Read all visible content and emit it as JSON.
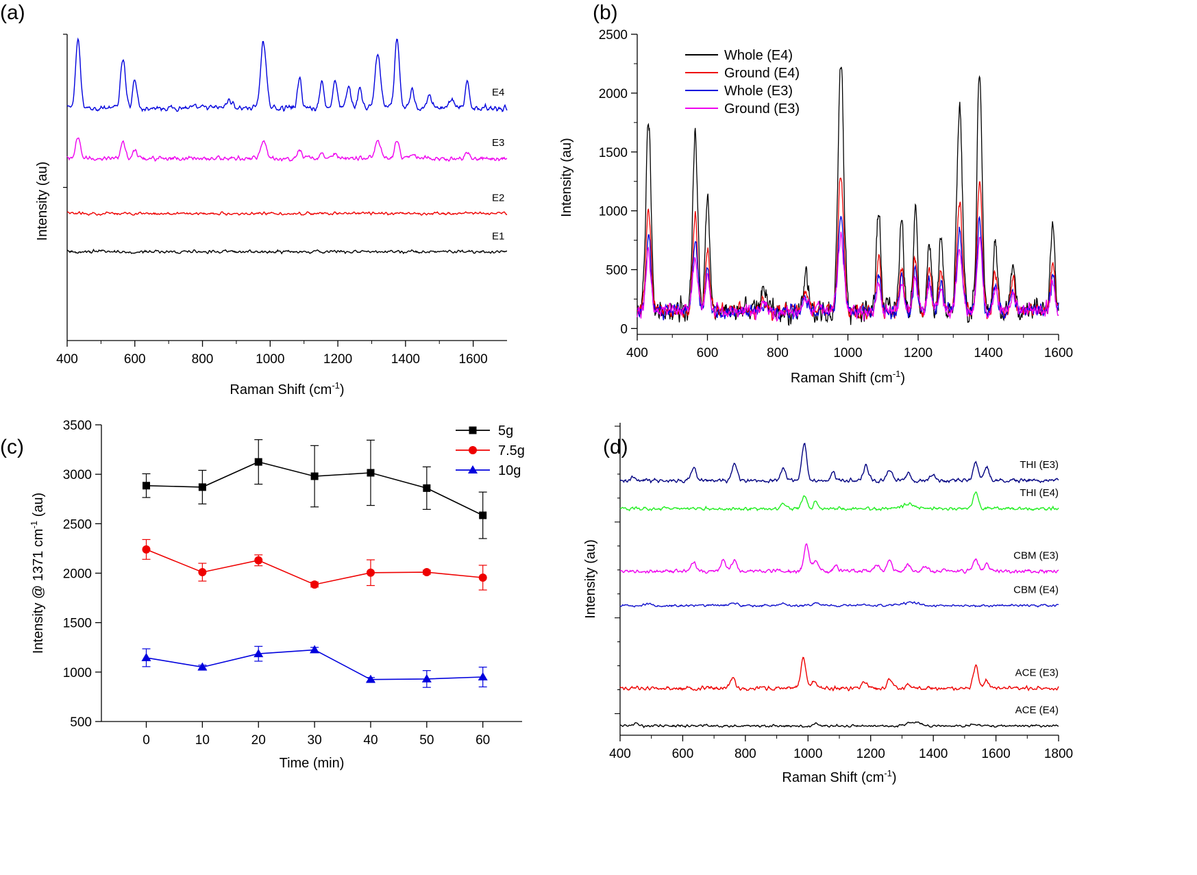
{
  "chart_data": [
    {
      "id": "a",
      "panel_label": "(a)",
      "type": "line",
      "xlabel": "Raman Shift (cm",
      "xlabel_sup": "-1",
      "xlabel_end": ")",
      "ylabel": "Intensity (au)",
      "xlim": [
        400,
        1700
      ],
      "xticks": [
        400,
        600,
        800,
        1000,
        1200,
        1400,
        1600
      ],
      "y_tick_labels": false,
      "grid": false,
      "legend": "none",
      "series": [
        {
          "name": "E4",
          "color": "#0000dd",
          "baseline": 0.76,
          "amp": 0.22,
          "noise": 0.012,
          "peaks": [
            [
              432,
              1.0,
              7
            ],
            [
              565,
              0.72,
              7
            ],
            [
              600,
              0.45,
              6
            ],
            [
              980,
              1.0,
              8
            ],
            [
              1087,
              0.43,
              6
            ],
            [
              1153,
              0.39,
              6
            ],
            [
              1192,
              0.43,
              6
            ],
            [
              1232,
              0.32,
              6
            ],
            [
              1265,
              0.3,
              6
            ],
            [
              1318,
              0.8,
              8
            ],
            [
              1375,
              1.0,
              7
            ],
            [
              1420,
              0.28,
              6
            ],
            [
              1470,
              0.2,
              6
            ],
            [
              1583,
              0.36,
              6
            ],
            [
              1535,
              0.12,
              8
            ],
            [
              880,
              0.12,
              8
            ]
          ]
        },
        {
          "name": "E3",
          "color": "#ee00ee",
          "baseline": 0.595,
          "amp": 0.09,
          "noise": 0.01,
          "peaks": [
            [
              432,
              0.7,
              7
            ],
            [
              565,
              0.55,
              7
            ],
            [
              600,
              0.3,
              6
            ],
            [
              980,
              0.7,
              8
            ],
            [
              1087,
              0.3,
              6
            ],
            [
              1153,
              0.18,
              6
            ],
            [
              1192,
              0.2,
              6
            ],
            [
              1318,
              0.62,
              8
            ],
            [
              1375,
              0.65,
              7
            ],
            [
              1420,
              0.15,
              6
            ],
            [
              1583,
              0.2,
              6
            ]
          ]
        },
        {
          "name": "E2",
          "color": "#ee0000",
          "baseline": 0.415,
          "amp": 0.01,
          "noise": 0.006,
          "peaks": []
        },
        {
          "name": "E1",
          "color": "#000000",
          "baseline": 0.29,
          "amp": 0.01,
          "noise": 0.007,
          "peaks": []
        }
      ]
    },
    {
      "id": "b",
      "panel_label": "(b)",
      "type": "line",
      "xlabel": "Raman Shift (cm",
      "xlabel_sup": "-1",
      "xlabel_end": ")",
      "ylabel": "Intensity (au)",
      "xlim": [
        400,
        1600
      ],
      "ylim": [
        -50,
        2500
      ],
      "xticks": [
        400,
        600,
        800,
        1000,
        1200,
        1400,
        1600
      ],
      "yticks": [
        0,
        500,
        1000,
        1500,
        2000,
        2500
      ],
      "grid": false,
      "legend": "top-left",
      "series": [
        {
          "name": "Whole (E4)",
          "color": "#000000",
          "scale": 1.0
        },
        {
          "name": "Ground (E4)",
          "color": "#ee0000",
          "scale": 0.54
        },
        {
          "name": "Whole (E3)",
          "color": "#0000dd",
          "scale": 0.38
        },
        {
          "name": "Ground (E3)",
          "color": "#ee00ee",
          "scale": 0.3
        }
      ],
      "peaks": [
        [
          432,
          1770,
          7
        ],
        [
          565,
          1650,
          7
        ],
        [
          600,
          1130,
          6
        ],
        [
          980,
          2300,
          8
        ],
        [
          1087,
          1010,
          6
        ],
        [
          1153,
          920,
          6
        ],
        [
          1192,
          1030,
          6
        ],
        [
          1232,
          790,
          6
        ],
        [
          1265,
          760,
          6
        ],
        [
          1318,
          1870,
          8
        ],
        [
          1375,
          2230,
          7
        ],
        [
          1420,
          720,
          6
        ],
        [
          1470,
          600,
          6
        ],
        [
          1583,
          920,
          6
        ],
        [
          880,
          480,
          6
        ],
        [
          760,
          330,
          8
        ]
      ]
    },
    {
      "id": "c",
      "panel_label": "(c)",
      "type": "line",
      "xlabel": "Time (min)",
      "ylabel": "Intensity @ 1371 cm",
      "ylabel_sup": "-1",
      "ylabel_end": " (au)",
      "xlim": [
        -8,
        67
      ],
      "ylim": [
        500,
        3500
      ],
      "xticks": [
        0,
        10,
        20,
        30,
        40,
        50,
        60
      ],
      "yticks": [
        500,
        1000,
        1500,
        2000,
        2500,
        3000,
        3500
      ],
      "grid": false,
      "legend": "top-right",
      "x": [
        0,
        10,
        20,
        30,
        40,
        50,
        60
      ],
      "series": [
        {
          "name": "5g",
          "color": "#000000",
          "marker": "square",
          "values": [
            2885,
            2870,
            3125,
            2980,
            3015,
            2860,
            2585
          ],
          "errors": [
            120,
            170,
            225,
            310,
            330,
            215,
            235
          ]
        },
        {
          "name": "7.5g",
          "color": "#ee0000",
          "marker": "circle",
          "values": [
            2240,
            2010,
            2130,
            1885,
            2005,
            2010,
            1955
          ],
          "errors": [
            100,
            90,
            55,
            25,
            130,
            20,
            125
          ]
        },
        {
          "name": "10g",
          "color": "#0000dd",
          "marker": "triangle",
          "values": [
            1145,
            1050,
            1185,
            1225,
            925,
            930,
            950
          ],
          "errors": [
            90,
            20,
            75,
            25,
            20,
            85,
            100
          ]
        }
      ]
    },
    {
      "id": "d",
      "panel_label": "(d)",
      "type": "line",
      "xlabel": "Raman Shift (cm",
      "xlabel_sup": "-1",
      "xlabel_end": ")",
      "ylabel": "Intensity (au)",
      "xlim": [
        400,
        1800
      ],
      "xticks": [
        400,
        600,
        800,
        1000,
        1200,
        1400,
        1600,
        1800
      ],
      "y_tick_labels": false,
      "grid": false,
      "legend": "none",
      "series": [
        {
          "name": "THI (E3)",
          "color": "#000080",
          "baseline": 0.815,
          "amp": 0.12,
          "noise": 0.008,
          "peaks": [
            [
              440,
              0.12,
              6
            ],
            [
              635,
              0.35,
              8
            ],
            [
              765,
              0.45,
              8
            ],
            [
              920,
              0.3,
              8
            ],
            [
              988,
              1.0,
              8
            ],
            [
              1080,
              0.25,
              6
            ],
            [
              1185,
              0.38,
              8
            ],
            [
              1260,
              0.3,
              8
            ],
            [
              1320,
              0.18,
              8
            ],
            [
              1400,
              0.15,
              8
            ],
            [
              1535,
              0.5,
              8
            ],
            [
              1570,
              0.38,
              8
            ]
          ]
        },
        {
          "name": "THI (E4)",
          "color": "#22ee22",
          "baseline": 0.725,
          "amp": 0.06,
          "noise": 0.007,
          "peaks": [
            [
              920,
              0.3,
              8
            ],
            [
              988,
              0.7,
              8
            ],
            [
              1025,
              0.45,
              6
            ],
            [
              1320,
              0.25,
              20
            ],
            [
              1535,
              0.9,
              8
            ]
          ]
        },
        {
          "name": "CBM (E3)",
          "color": "#ee00ee",
          "baseline": 0.525,
          "amp": 0.09,
          "noise": 0.008,
          "peaks": [
            [
              635,
              0.3,
              8
            ],
            [
              730,
              0.4,
              8
            ],
            [
              765,
              0.4,
              8
            ],
            [
              995,
              0.95,
              8
            ],
            [
              1025,
              0.4,
              8
            ],
            [
              1090,
              0.2,
              8
            ],
            [
              1220,
              0.2,
              8
            ],
            [
              1260,
              0.4,
              8
            ],
            [
              1320,
              0.25,
              8
            ],
            [
              1375,
              0.15,
              8
            ],
            [
              1535,
              0.45,
              8
            ],
            [
              1570,
              0.25,
              8
            ]
          ]
        },
        {
          "name": "CBM (E4)",
          "color": "#1010cc",
          "baseline": 0.415,
          "amp": 0.03,
          "noise": 0.005,
          "peaks": [
            [
              490,
              0.25,
              8
            ],
            [
              760,
              0.25,
              12
            ],
            [
              920,
              0.2,
              8
            ],
            [
              1025,
              0.35,
              8
            ],
            [
              1330,
              0.35,
              25
            ]
          ]
        },
        {
          "name": "ACE (E3)",
          "color": "#ee0000",
          "baseline": 0.15,
          "amp": 0.12,
          "noise": 0.008,
          "peaks": [
            [
              760,
              0.3,
              8
            ],
            [
              985,
              0.8,
              8
            ],
            [
              1020,
              0.2,
              8
            ],
            [
              1180,
              0.2,
              8
            ],
            [
              1260,
              0.25,
              8
            ],
            [
              1320,
              0.12,
              8
            ],
            [
              1535,
              0.6,
              8
            ],
            [
              1570,
              0.2,
              8
            ]
          ]
        },
        {
          "name": "ACE (E4)",
          "color": "#000000",
          "baseline": 0.03,
          "amp": 0.04,
          "noise": 0.005,
          "peaks": [
            [
              450,
              0.2,
              8
            ],
            [
              1025,
              0.25,
              6
            ],
            [
              1340,
              0.3,
              20
            ],
            [
              1530,
              0.15,
              8
            ]
          ]
        }
      ]
    }
  ]
}
